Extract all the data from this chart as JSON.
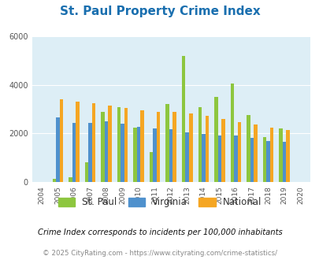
{
  "title": "St. Paul Property Crime Index",
  "years": [
    2004,
    2005,
    2006,
    2007,
    2008,
    2009,
    2010,
    2011,
    2012,
    2013,
    2014,
    2015,
    2016,
    2017,
    2018,
    2019,
    2020
  ],
  "st_paul": [
    0,
    120,
    200,
    800,
    2900,
    3100,
    2230,
    1250,
    3200,
    5200,
    3100,
    3500,
    4050,
    2750,
    1850,
    2200,
    0
  ],
  "virginia": [
    0,
    2650,
    2450,
    2450,
    2500,
    2400,
    2270,
    2220,
    2180,
    2060,
    1970,
    1900,
    1900,
    1810,
    1680,
    1670,
    0
  ],
  "national": [
    0,
    3400,
    3300,
    3250,
    3150,
    3050,
    2960,
    2900,
    2890,
    2840,
    2720,
    2600,
    2470,
    2370,
    2230,
    2150,
    0
  ],
  "st_paul_color": "#8dc63f",
  "virginia_color": "#4f91cd",
  "national_color": "#f5a623",
  "bg_color": "#ddeef6",
  "ylim": [
    0,
    6000
  ],
  "yticks": [
    0,
    2000,
    4000,
    6000
  ],
  "legend_labels": [
    "St. Paul",
    "Virginia",
    "National"
  ],
  "footnote1": "Crime Index corresponds to incidents per 100,000 inhabitants",
  "footnote2": "© 2025 CityRating.com - https://www.cityrating.com/crime-statistics/"
}
